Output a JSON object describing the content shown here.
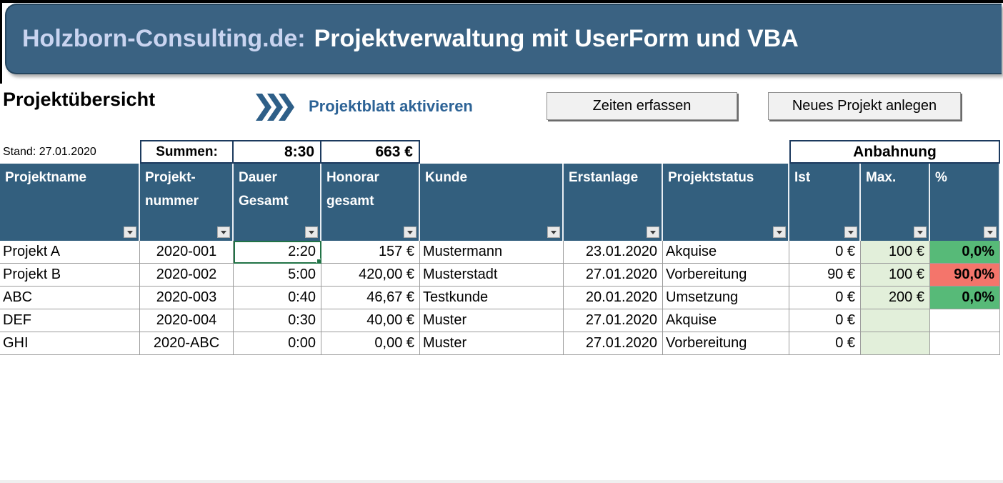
{
  "banner": {
    "brand": "Holzborn-Consulting.de:",
    "title": "Projektverwaltung mit UserForm und VBA"
  },
  "toolbar": {
    "page_title": "Projektübersicht",
    "activate_link_label": "Projektblatt aktivieren",
    "zeiten_button_label": "Zeiten erfassen",
    "neues_projekt_button_label": "Neues Projekt anlegen"
  },
  "status_line": {
    "stand_label": "Stand: 27.01.2020"
  },
  "summary_row": {
    "label": "Summen:",
    "duration_total": "8:30",
    "fee_total": "663 €"
  },
  "group_header": {
    "label": "Anbahnung"
  },
  "table": {
    "columns": [
      {
        "line1": "Projektname",
        "line2": ""
      },
      {
        "line1": "Projekt-",
        "line2": "nummer"
      },
      {
        "line1": "Dauer",
        "line2": "Gesamt"
      },
      {
        "line1": "Honorar",
        "line2": "gesamt"
      },
      {
        "line1": "Kunde",
        "line2": ""
      },
      {
        "line1": "Erstanlage",
        "line2": ""
      },
      {
        "line1": "Projektstatus",
        "line2": ""
      },
      {
        "line1": "Ist",
        "line2": ""
      },
      {
        "line1": "Max.",
        "line2": ""
      },
      {
        "line1": "%",
        "line2": ""
      }
    ],
    "rows": [
      {
        "name": "Projekt A",
        "number": "2020-001",
        "duration": "2:20",
        "fee": "157 €",
        "client": "Mustermann",
        "created": "23.01.2020",
        "status": "Akquise",
        "ist": "0 €",
        "max": "100 €",
        "pct": "0,0%",
        "pct_state": "green",
        "selected_cell": "duration"
      },
      {
        "name": "Projekt B",
        "number": "2020-002",
        "duration": "5:00",
        "fee": "420,00 €",
        "client": "Musterstadt",
        "created": "27.01.2020",
        "status": "Vorbereitung",
        "ist": "90 €",
        "max": "100 €",
        "pct": "90,0%",
        "pct_state": "red",
        "selected_cell": ""
      },
      {
        "name": "ABC",
        "number": "2020-003",
        "duration": "0:40",
        "fee": "46,67 €",
        "client": "Testkunde",
        "created": "20.01.2020",
        "status": "Umsetzung",
        "ist": "0 €",
        "max": "200 €",
        "pct": "0,0%",
        "pct_state": "green",
        "selected_cell": ""
      },
      {
        "name": "DEF",
        "number": "2020-004",
        "duration": "0:30",
        "fee": "40,00 €",
        "client": "Muster",
        "created": "27.01.2020",
        "status": "Akquise",
        "ist": "0 €",
        "max": "",
        "pct": "",
        "pct_state": "none",
        "selected_cell": ""
      },
      {
        "name": "GHI",
        "number": "2020-ABC",
        "duration": "0:00",
        "fee": "0,00 €",
        "client": "Muster",
        "created": "27.01.2020",
        "status": "Vorbereitung",
        "ist": "0 €",
        "max": "",
        "pct": "",
        "pct_state": "none",
        "selected_cell": ""
      }
    ]
  },
  "icons": {
    "pointer": "triple-chevron-right-icon",
    "filter": "filter-dropdown-icon"
  },
  "colors": {
    "banner_blue": "#3A6282",
    "header_blue": "#335F7E",
    "link_blue": "#2D6396",
    "brand_text": "#C9D4F0",
    "summary_border_navy": "#1C3A5E",
    "pct_green": "#57BA78",
    "pct_red": "#F4756B",
    "max_light_green": "#E2EFDA",
    "selection_green": "#217346"
  }
}
